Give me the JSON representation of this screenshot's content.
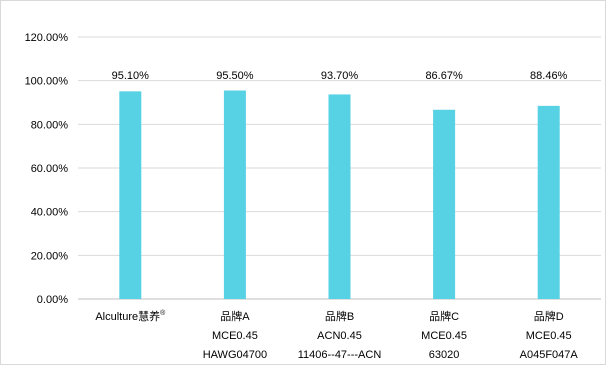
{
  "chart_data": {
    "type": "bar",
    "categories": [
      {
        "lines": [
          "Alculture慧养"
        ],
        "sup": "®"
      },
      {
        "lines": [
          "品牌A",
          "MCE0.45",
          "HAWG04700"
        ]
      },
      {
        "lines": [
          "品牌B",
          "ACN0.45",
          "11406--47---ACN"
        ]
      },
      {
        "lines": [
          "品牌C",
          "MCE0.45",
          "63020"
        ]
      },
      {
        "lines": [
          "品牌D",
          "MCE0.45",
          "A045F047A"
        ]
      }
    ],
    "values": [
      95.1,
      95.5,
      93.7,
      86.67,
      88.46
    ],
    "data_labels": [
      "95.10%",
      "95.50%",
      "93.70%",
      "86.67%",
      "88.46%"
    ],
    "y_ticks": [
      {
        "value": 0,
        "label": "0.00%"
      },
      {
        "value": 20,
        "label": "20.00%"
      },
      {
        "value": 40,
        "label": "40.00%"
      },
      {
        "value": 60,
        "label": "60.00%"
      },
      {
        "value": 80,
        "label": "80.00%"
      },
      {
        "value": 100,
        "label": "100.00%"
      },
      {
        "value": 120,
        "label": "120.00%"
      }
    ],
    "ylim": [
      0,
      120
    ],
    "grid": true,
    "legend": "none",
    "colors": {
      "bar": "#56d2e4",
      "grid": "#d9d9d9",
      "axis": "#bfbfbf",
      "text": "#000000"
    }
  }
}
